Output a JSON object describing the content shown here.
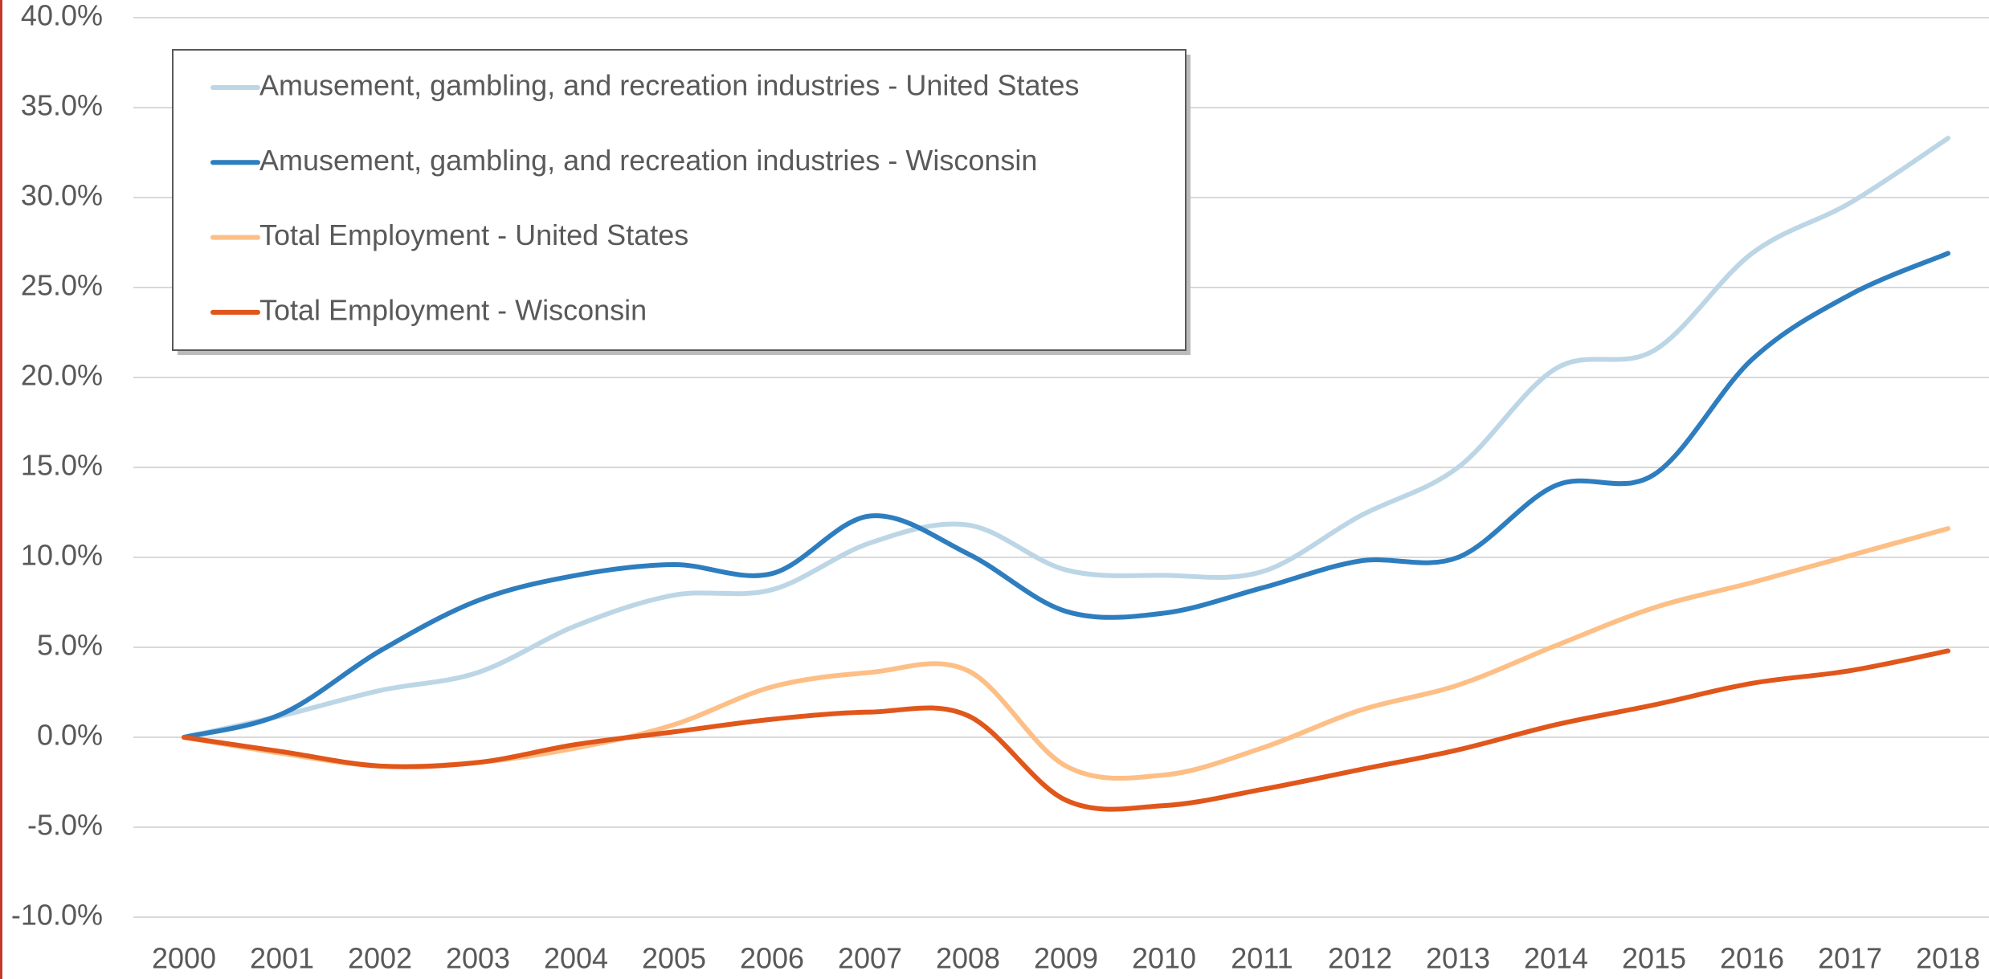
{
  "chart_data": {
    "type": "line",
    "categories": [
      "2000",
      "2001",
      "2002",
      "2003",
      "2004",
      "2005",
      "2006",
      "2007",
      "2008",
      "2009",
      "2010",
      "2011",
      "2012",
      "2013",
      "2014",
      "2015",
      "2016",
      "2017",
      "2018"
    ],
    "series": [
      {
        "name": "Amusement, gambling, and recreation industries - United States",
        "color": "#bcd6e6",
        "values": [
          0,
          1.2,
          2.6,
          3.6,
          6.2,
          7.9,
          8.2,
          10.8,
          11.8,
          9.3,
          9.0,
          9.2,
          12.3,
          15.0,
          20.5,
          21.5,
          26.9,
          29.7,
          33.3
        ]
      },
      {
        "name": "Amusement, gambling, and recreation industries - Wisconsin",
        "color": "#2e7ebf",
        "values": [
          0,
          1.3,
          4.8,
          7.6,
          9.0,
          9.6,
          9.1,
          12.3,
          10.2,
          7.0,
          6.9,
          8.3,
          9.8,
          10.0,
          14.0,
          14.6,
          21.0,
          24.6,
          26.9
        ]
      },
      {
        "name": "Total Employment - United States",
        "color": "#fdbf86",
        "values": [
          0,
          -0.9,
          -1.6,
          -1.4,
          -0.6,
          0.7,
          2.8,
          3.6,
          3.7,
          -1.6,
          -2.1,
          -0.6,
          1.5,
          2.9,
          5.1,
          7.2,
          8.6,
          10.1,
          11.6
        ]
      },
      {
        "name": "Total Employment - Wisconsin",
        "color": "#e0561b",
        "values": [
          0,
          -0.8,
          -1.6,
          -1.4,
          -0.4,
          0.3,
          1.0,
          1.4,
          1.2,
          -3.5,
          -3.8,
          -2.9,
          -1.8,
          -0.7,
          0.7,
          1.8,
          3.0,
          3.7,
          4.8
        ]
      }
    ],
    "ylim": [
      -10,
      40
    ],
    "yticks": [
      {
        "value": -10,
        "label": "-10.0%"
      },
      {
        "value": -5,
        "label": "-5.0%"
      },
      {
        "value": 0,
        "label": "0.0%"
      },
      {
        "value": 5,
        "label": "5.0%"
      },
      {
        "value": 10,
        "label": "10.0%"
      },
      {
        "value": 15,
        "label": "15.0%"
      },
      {
        "value": 20,
        "label": "20.0%"
      },
      {
        "value": 25,
        "label": "25.0%"
      },
      {
        "value": 30,
        "label": "30.0%"
      },
      {
        "value": 35,
        "label": "35.0%"
      },
      {
        "value": 40,
        "label": "40.0%"
      }
    ],
    "grid": true,
    "legend": "upper left"
  }
}
